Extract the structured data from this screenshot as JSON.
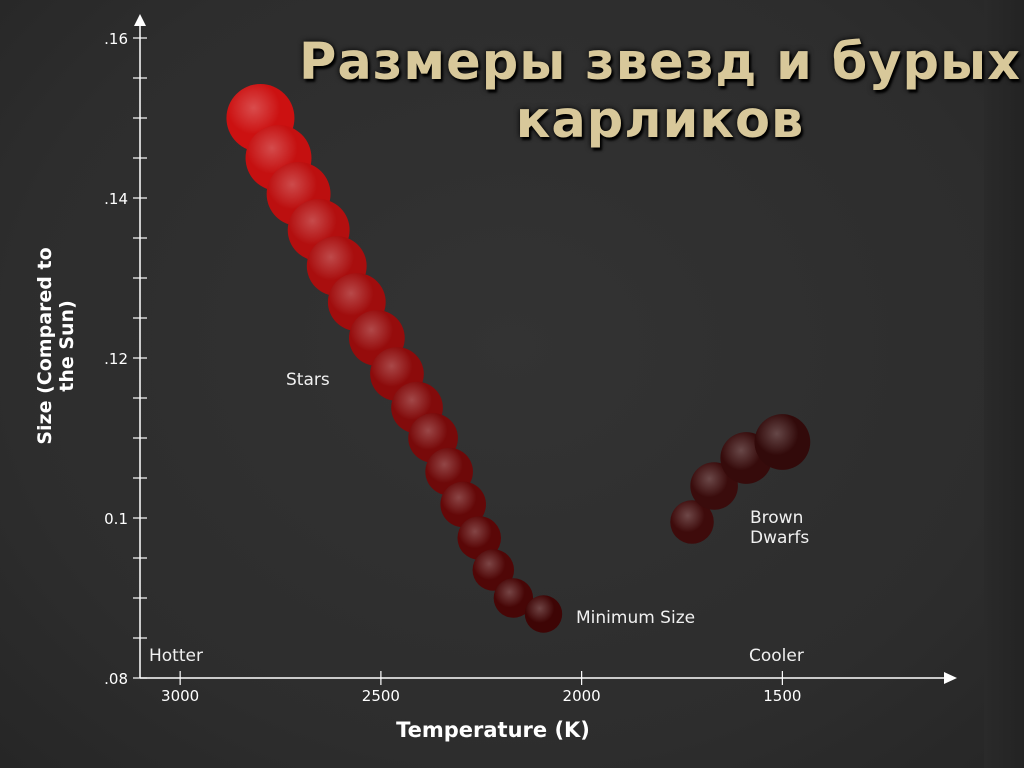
{
  "title_lines": [
    "Размеры звезд и бурых",
    "карликов"
  ],
  "chart_data": {
    "type": "scatter",
    "xlabel": "Temperature (K)",
    "ylabel": "Size (Compared to the Sun)",
    "xlim": [
      3100,
      1070
    ],
    "ylim": [
      0.08,
      0.16
    ],
    "x_ticks": [
      {
        "value": 3000,
        "label": "3000"
      },
      {
        "value": 2500,
        "label": "2500"
      },
      {
        "value": 2000,
        "label": "2000"
      },
      {
        "value": 1500,
        "label": "1500"
      }
    ],
    "y_ticks": [
      {
        "value": 0.08,
        "label": ".08"
      },
      {
        "value": 0.085,
        "label": ""
      },
      {
        "value": 0.09,
        "label": ""
      },
      {
        "value": 0.095,
        "label": ""
      },
      {
        "value": 0.1,
        "label": "0.1"
      },
      {
        "value": 0.105,
        "label": ""
      },
      {
        "value": 0.11,
        "label": ""
      },
      {
        "value": 0.115,
        "label": ""
      },
      {
        "value": 0.12,
        "label": ".12"
      },
      {
        "value": 0.125,
        "label": ""
      },
      {
        "value": 0.13,
        "label": ""
      },
      {
        "value": 0.135,
        "label": ""
      },
      {
        "value": 0.14,
        "label": ".14"
      },
      {
        "value": 0.145,
        "label": ""
      },
      {
        "value": 0.15,
        "label": ""
      },
      {
        "value": 0.155,
        "label": ""
      },
      {
        "value": 0.16,
        "label": ".16"
      }
    ],
    "series": [
      {
        "name": "Stars",
        "points": [
          {
            "x": 2800,
            "y": 0.15,
            "size": 1.0,
            "color": "#cc1111"
          },
          {
            "x": 2755,
            "y": 0.145,
            "size": 0.97,
            "color": "#c51010"
          },
          {
            "x": 2705,
            "y": 0.1405,
            "size": 0.94,
            "color": "#bc0f0f"
          },
          {
            "x": 2655,
            "y": 0.136,
            "size": 0.91,
            "color": "#b30f0f"
          },
          {
            "x": 2610,
            "y": 0.1315,
            "size": 0.88,
            "color": "#a90e0e"
          },
          {
            "x": 2560,
            "y": 0.127,
            "size": 0.85,
            "color": "#a00d0d"
          },
          {
            "x": 2510,
            "y": 0.1225,
            "size": 0.82,
            "color": "#960c0c"
          },
          {
            "x": 2460,
            "y": 0.118,
            "size": 0.79,
            "color": "#8c0b0b"
          },
          {
            "x": 2410,
            "y": 0.1138,
            "size": 0.76,
            "color": "#820b0b"
          },
          {
            "x": 2370,
            "y": 0.11,
            "size": 0.73,
            "color": "#780a0a"
          },
          {
            "x": 2330,
            "y": 0.1058,
            "size": 0.7,
            "color": "#6e0909"
          },
          {
            "x": 2295,
            "y": 0.1017,
            "size": 0.67,
            "color": "#640808"
          },
          {
            "x": 2255,
            "y": 0.0975,
            "size": 0.64,
            "color": "#5a0707"
          },
          {
            "x": 2220,
            "y": 0.0935,
            "size": 0.61,
            "color": "#500707"
          },
          {
            "x": 2170,
            "y": 0.09,
            "size": 0.58,
            "color": "#470606"
          },
          {
            "x": 2095,
            "y": 0.088,
            "size": 0.55,
            "color": "#3e0505"
          }
        ]
      },
      {
        "name": "Brown Dwarfs",
        "points": [
          {
            "x": 1725,
            "y": 0.0995,
            "size": 0.64,
            "color": "#3e0b0b"
          },
          {
            "x": 1670,
            "y": 0.104,
            "size": 0.7,
            "color": "#3a0c0c"
          },
          {
            "x": 1590,
            "y": 0.1075,
            "size": 0.76,
            "color": "#360b0b"
          },
          {
            "x": 1500,
            "y": 0.1095,
            "size": 0.82,
            "color": "#320a0a"
          }
        ]
      }
    ],
    "annotations": {
      "stars": "Stars",
      "minimum_size": "Minimum Size",
      "brown_dwarfs": "Brown Dwarfs",
      "hotter": "Hotter",
      "cooler": "Cooler"
    },
    "grid": false,
    "legend": "none",
    "colors": {
      "axis": "#ffffff",
      "background": "#2f2f2f"
    }
  }
}
